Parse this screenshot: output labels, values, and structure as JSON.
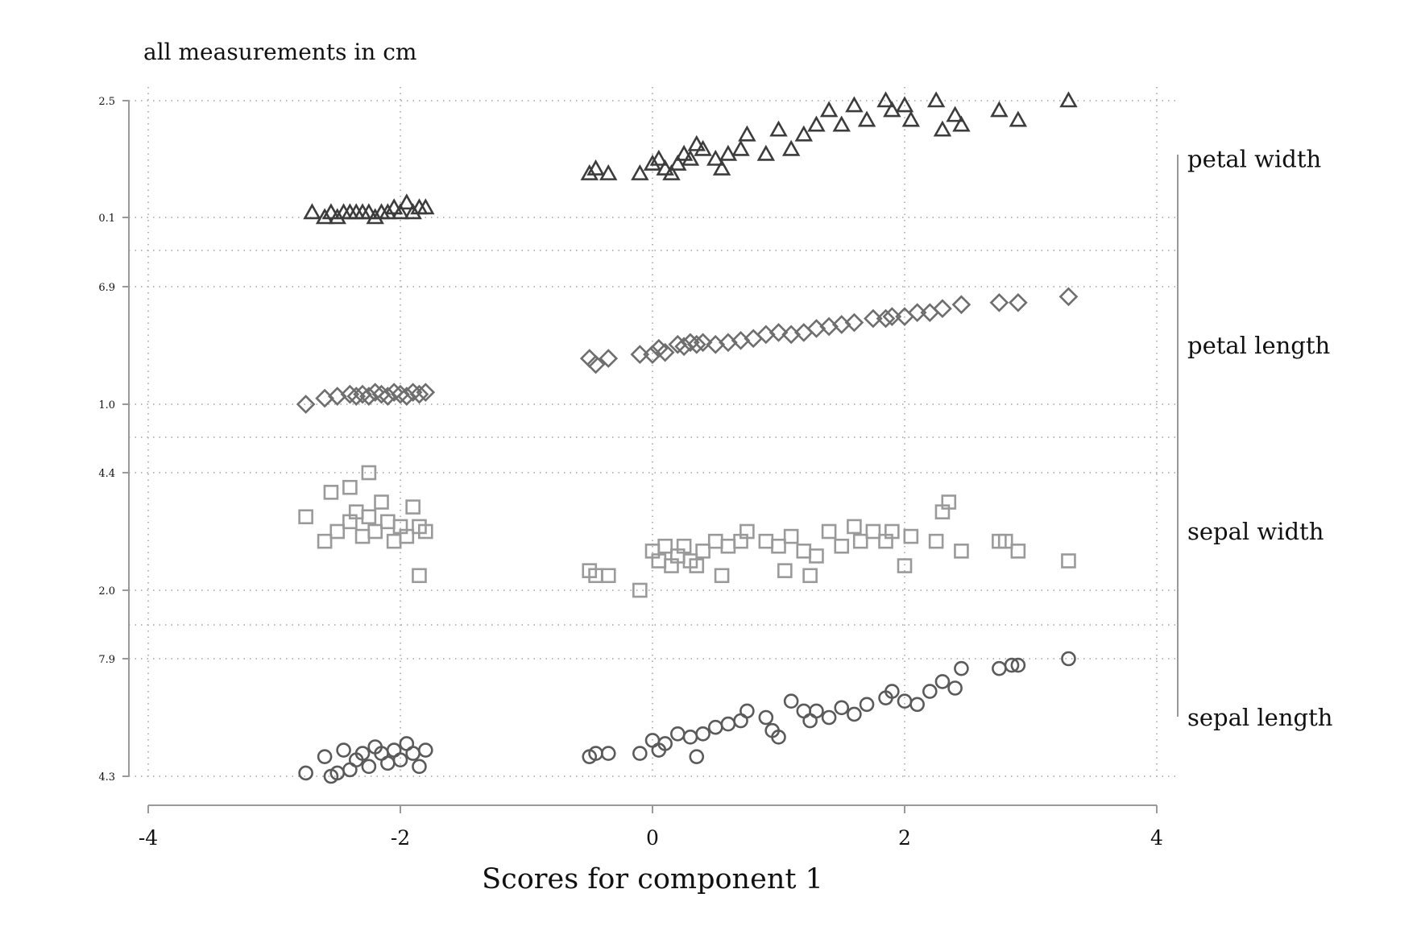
{
  "chart_data": {
    "type": "scatter",
    "title": "",
    "note": "all measurements in cm",
    "xlabel": "Scores for component 1",
    "xlim": [
      -4,
      4
    ],
    "x_ticks": [
      "-4",
      "-2",
      "0",
      "2",
      "4"
    ],
    "grid": true,
    "colors": {
      "petal_width": "#3c3c3c",
      "petal_length": "#6e6e6e",
      "sepal_width": "#9a9a9a",
      "sepal_length": "#5a5a5a"
    },
    "panels": [
      {
        "name": "petal width",
        "marker": "triangle",
        "ylim": [
          0.1,
          2.5
        ],
        "y_ticks": [
          "0.1",
          "2.5"
        ],
        "points": [
          [
            -2.7,
            0.2
          ],
          [
            -2.6,
            0.1
          ],
          [
            -2.55,
            0.2
          ],
          [
            -2.5,
            0.1
          ],
          [
            -2.45,
            0.2
          ],
          [
            -2.4,
            0.2
          ],
          [
            -2.35,
            0.2
          ],
          [
            -2.3,
            0.2
          ],
          [
            -2.25,
            0.2
          ],
          [
            -2.2,
            0.1
          ],
          [
            -2.15,
            0.2
          ],
          [
            -2.1,
            0.2
          ],
          [
            -2.05,
            0.3
          ],
          [
            -2.0,
            0.2
          ],
          [
            -1.95,
            0.4
          ],
          [
            -1.9,
            0.2
          ],
          [
            -1.85,
            0.3
          ],
          [
            -1.8,
            0.3
          ],
          [
            -0.5,
            1.0
          ],
          [
            -0.45,
            1.1
          ],
          [
            -0.35,
            1.0
          ],
          [
            -0.1,
            1.0
          ],
          [
            0.0,
            1.2
          ],
          [
            0.05,
            1.3
          ],
          [
            0.1,
            1.1
          ],
          [
            0.15,
            1.0
          ],
          [
            0.2,
            1.2
          ],
          [
            0.25,
            1.4
          ],
          [
            0.3,
            1.3
          ],
          [
            0.35,
            1.6
          ],
          [
            0.4,
            1.5
          ],
          [
            0.5,
            1.3
          ],
          [
            0.55,
            1.1
          ],
          [
            0.6,
            1.4
          ],
          [
            0.7,
            1.5
          ],
          [
            0.75,
            1.8
          ],
          [
            0.9,
            1.4
          ],
          [
            1.0,
            1.9
          ],
          [
            1.1,
            1.5
          ],
          [
            1.2,
            1.8
          ],
          [
            1.3,
            2.0
          ],
          [
            1.4,
            2.3
          ],
          [
            1.5,
            2.0
          ],
          [
            1.6,
            2.4
          ],
          [
            1.7,
            2.1
          ],
          [
            1.85,
            2.5
          ],
          [
            1.9,
            2.3
          ],
          [
            2.0,
            2.4
          ],
          [
            2.05,
            2.1
          ],
          [
            2.25,
            2.5
          ],
          [
            2.3,
            1.9
          ],
          [
            2.4,
            2.2
          ],
          [
            2.45,
            2.0
          ],
          [
            2.75,
            2.3
          ],
          [
            2.9,
            2.1
          ],
          [
            3.3,
            2.5
          ]
        ]
      },
      {
        "name": "petal length",
        "marker": "diamond",
        "ylim": [
          1.0,
          6.9
        ],
        "y_ticks": [
          "1.0",
          "6.9"
        ],
        "points": [
          [
            -2.75,
            1.0
          ],
          [
            -2.6,
            1.3
          ],
          [
            -2.5,
            1.4
          ],
          [
            -2.4,
            1.5
          ],
          [
            -2.35,
            1.4
          ],
          [
            -2.3,
            1.5
          ],
          [
            -2.25,
            1.4
          ],
          [
            -2.2,
            1.6
          ],
          [
            -2.15,
            1.5
          ],
          [
            -2.1,
            1.4
          ],
          [
            -2.05,
            1.6
          ],
          [
            -2.0,
            1.5
          ],
          [
            -1.95,
            1.4
          ],
          [
            -1.9,
            1.6
          ],
          [
            -1.85,
            1.5
          ],
          [
            -1.8,
            1.6
          ],
          [
            -0.5,
            3.3
          ],
          [
            -0.45,
            3.0
          ],
          [
            -0.35,
            3.3
          ],
          [
            -0.1,
            3.5
          ],
          [
            0.0,
            3.5
          ],
          [
            0.05,
            3.8
          ],
          [
            0.1,
            3.6
          ],
          [
            0.2,
            4.0
          ],
          [
            0.25,
            3.9
          ],
          [
            0.3,
            4.1
          ],
          [
            0.35,
            4.0
          ],
          [
            0.4,
            4.1
          ],
          [
            0.5,
            4.0
          ],
          [
            0.6,
            4.1
          ],
          [
            0.7,
            4.2
          ],
          [
            0.8,
            4.3
          ],
          [
            0.9,
            4.5
          ],
          [
            1.0,
            4.6
          ],
          [
            1.1,
            4.5
          ],
          [
            1.2,
            4.6
          ],
          [
            1.3,
            4.8
          ],
          [
            1.4,
            4.9
          ],
          [
            1.5,
            5.0
          ],
          [
            1.6,
            5.1
          ],
          [
            1.75,
            5.3
          ],
          [
            1.85,
            5.3
          ],
          [
            1.9,
            5.4
          ],
          [
            2.0,
            5.4
          ],
          [
            2.1,
            5.6
          ],
          [
            2.2,
            5.6
          ],
          [
            2.3,
            5.8
          ],
          [
            2.45,
            6.0
          ],
          [
            2.75,
            6.1
          ],
          [
            2.9,
            6.1
          ],
          [
            3.3,
            6.4
          ]
        ]
      },
      {
        "name": "sepal width",
        "marker": "square",
        "ylim": [
          2.0,
          4.4
        ],
        "y_ticks": [
          "2.0",
          "4.4"
        ],
        "points": [
          [
            -2.75,
            3.5
          ],
          [
            -2.6,
            3.0
          ],
          [
            -2.55,
            4.0
          ],
          [
            -2.5,
            3.2
          ],
          [
            -2.4,
            3.4
          ],
          [
            -2.35,
            3.6
          ],
          [
            -2.3,
            3.1
          ],
          [
            -2.25,
            3.5
          ],
          [
            -2.2,
            3.2
          ],
          [
            -2.15,
            3.8
          ],
          [
            -2.1,
            3.4
          ],
          [
            -2.05,
            3.0
          ],
          [
            -2.0,
            3.3
          ],
          [
            -1.95,
            3.1
          ],
          [
            -1.9,
            3.7
          ],
          [
            -1.85,
            3.3
          ],
          [
            -1.8,
            3.2
          ],
          [
            -1.85,
            2.3
          ],
          [
            -2.4,
            4.1
          ],
          [
            -2.25,
            4.4
          ],
          [
            -0.5,
            2.4
          ],
          [
            -0.45,
            2.3
          ],
          [
            -0.35,
            2.3
          ],
          [
            -0.1,
            2.0
          ],
          [
            0.0,
            2.8
          ],
          [
            0.05,
            2.6
          ],
          [
            0.1,
            2.9
          ],
          [
            0.15,
            2.5
          ],
          [
            0.2,
            2.7
          ],
          [
            0.25,
            2.9
          ],
          [
            0.3,
            2.6
          ],
          [
            0.35,
            2.5
          ],
          [
            0.4,
            2.8
          ],
          [
            0.5,
            3.0
          ],
          [
            0.55,
            2.3
          ],
          [
            0.6,
            2.9
          ],
          [
            0.7,
            3.0
          ],
          [
            0.75,
            3.2
          ],
          [
            0.9,
            3.0
          ],
          [
            1.0,
            2.9
          ],
          [
            1.05,
            2.4
          ],
          [
            1.1,
            3.1
          ],
          [
            1.2,
            2.8
          ],
          [
            1.25,
            2.3
          ],
          [
            1.3,
            2.7
          ],
          [
            1.4,
            3.2
          ],
          [
            1.5,
            2.9
          ],
          [
            1.6,
            3.3
          ],
          [
            1.65,
            3.0
          ],
          [
            1.75,
            3.2
          ],
          [
            1.85,
            3.0
          ],
          [
            1.9,
            3.2
          ],
          [
            2.0,
            2.5
          ],
          [
            2.05,
            3.1
          ],
          [
            2.25,
            3.0
          ],
          [
            2.3,
            3.6
          ],
          [
            2.35,
            3.8
          ],
          [
            2.45,
            2.8
          ],
          [
            2.75,
            3.0
          ],
          [
            2.8,
            3.0
          ],
          [
            2.9,
            2.8
          ],
          [
            3.3,
            2.6
          ]
        ]
      },
      {
        "name": "sepal length",
        "marker": "circle",
        "ylim": [
          4.3,
          7.9
        ],
        "y_ticks": [
          "4.3",
          "7.9"
        ],
        "points": [
          [
            -2.75,
            4.4
          ],
          [
            -2.6,
            4.9
          ],
          [
            -2.55,
            4.3
          ],
          [
            -2.5,
            4.4
          ],
          [
            -2.45,
            5.1
          ],
          [
            -2.4,
            4.5
          ],
          [
            -2.35,
            4.8
          ],
          [
            -2.3,
            5.0
          ],
          [
            -2.25,
            4.6
          ],
          [
            -2.2,
            5.2
          ],
          [
            -2.15,
            5.0
          ],
          [
            -2.1,
            4.7
          ],
          [
            -2.05,
            5.1
          ],
          [
            -2.0,
            4.8
          ],
          [
            -1.95,
            5.3
          ],
          [
            -1.9,
            5.0
          ],
          [
            -1.85,
            4.6
          ],
          [
            -1.8,
            5.1
          ],
          [
            -0.5,
            4.9
          ],
          [
            -0.45,
            5.0
          ],
          [
            -0.35,
            5.0
          ],
          [
            -0.1,
            5.0
          ],
          [
            0.0,
            5.4
          ],
          [
            0.05,
            5.1
          ],
          [
            0.1,
            5.3
          ],
          [
            0.2,
            5.6
          ],
          [
            0.3,
            5.5
          ],
          [
            0.35,
            4.9
          ],
          [
            0.4,
            5.6
          ],
          [
            0.5,
            5.8
          ],
          [
            0.6,
            5.9
          ],
          [
            0.7,
            6.0
          ],
          [
            0.75,
            6.3
          ],
          [
            0.9,
            6.1
          ],
          [
            0.95,
            5.7
          ],
          [
            1.0,
            5.5
          ],
          [
            1.1,
            6.6
          ],
          [
            1.2,
            6.3
          ],
          [
            1.25,
            6.0
          ],
          [
            1.3,
            6.3
          ],
          [
            1.4,
            6.1
          ],
          [
            1.5,
            6.4
          ],
          [
            1.6,
            6.2
          ],
          [
            1.7,
            6.5
          ],
          [
            1.85,
            6.7
          ],
          [
            1.9,
            6.9
          ],
          [
            2.0,
            6.6
          ],
          [
            2.1,
            6.5
          ],
          [
            2.2,
            6.9
          ],
          [
            2.3,
            7.2
          ],
          [
            2.4,
            7.0
          ],
          [
            2.45,
            7.6
          ],
          [
            2.75,
            7.6
          ],
          [
            2.85,
            7.7
          ],
          [
            2.9,
            7.7
          ],
          [
            3.3,
            7.9
          ]
        ]
      }
    ]
  }
}
